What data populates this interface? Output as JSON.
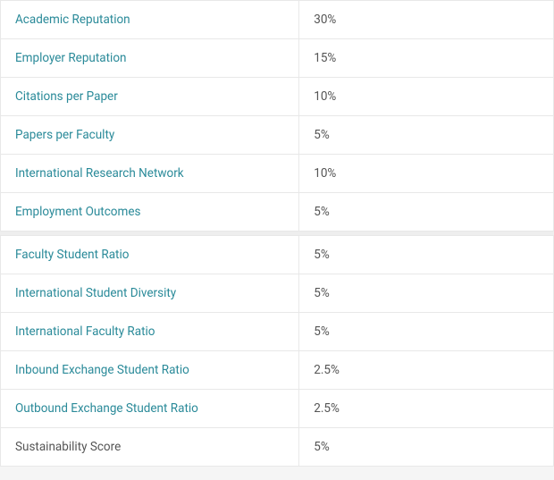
{
  "table": {
    "border_color": "#e8e8e8",
    "background_color": "#ffffff",
    "link_color": "#2a8a99",
    "text_color": "#555555",
    "font_size": 13.5,
    "label_column_width_pct": 54,
    "value_column_width_pct": 46,
    "section1": [
      {
        "label": "Academic Reputation",
        "value": "30%",
        "is_link": true
      },
      {
        "label": "Employer Reputation",
        "value": "15%",
        "is_link": true
      },
      {
        "label": "Citations per Paper",
        "value": "10%",
        "is_link": true
      },
      {
        "label": "Papers per Faculty",
        "value": "5%",
        "is_link": true
      },
      {
        "label": "International Research Network",
        "value": "10%",
        "is_link": true
      },
      {
        "label": "Employment Outcomes",
        "value": "5%",
        "is_link": true
      }
    ],
    "section2": [
      {
        "label": "Faculty Student Ratio",
        "value": "5%",
        "is_link": true
      },
      {
        "label": "International Student Diversity",
        "value": "5%",
        "is_link": true
      },
      {
        "label": "International Faculty Ratio",
        "value": "5%",
        "is_link": true
      },
      {
        "label": "Inbound Exchange Student Ratio",
        "value": "2.5%",
        "is_link": true
      },
      {
        "label": "Outbound Exchange Student Ratio",
        "value": "2.5%",
        "is_link": true
      },
      {
        "label": "Sustainability Score",
        "value": "5%",
        "is_link": false
      }
    ]
  }
}
